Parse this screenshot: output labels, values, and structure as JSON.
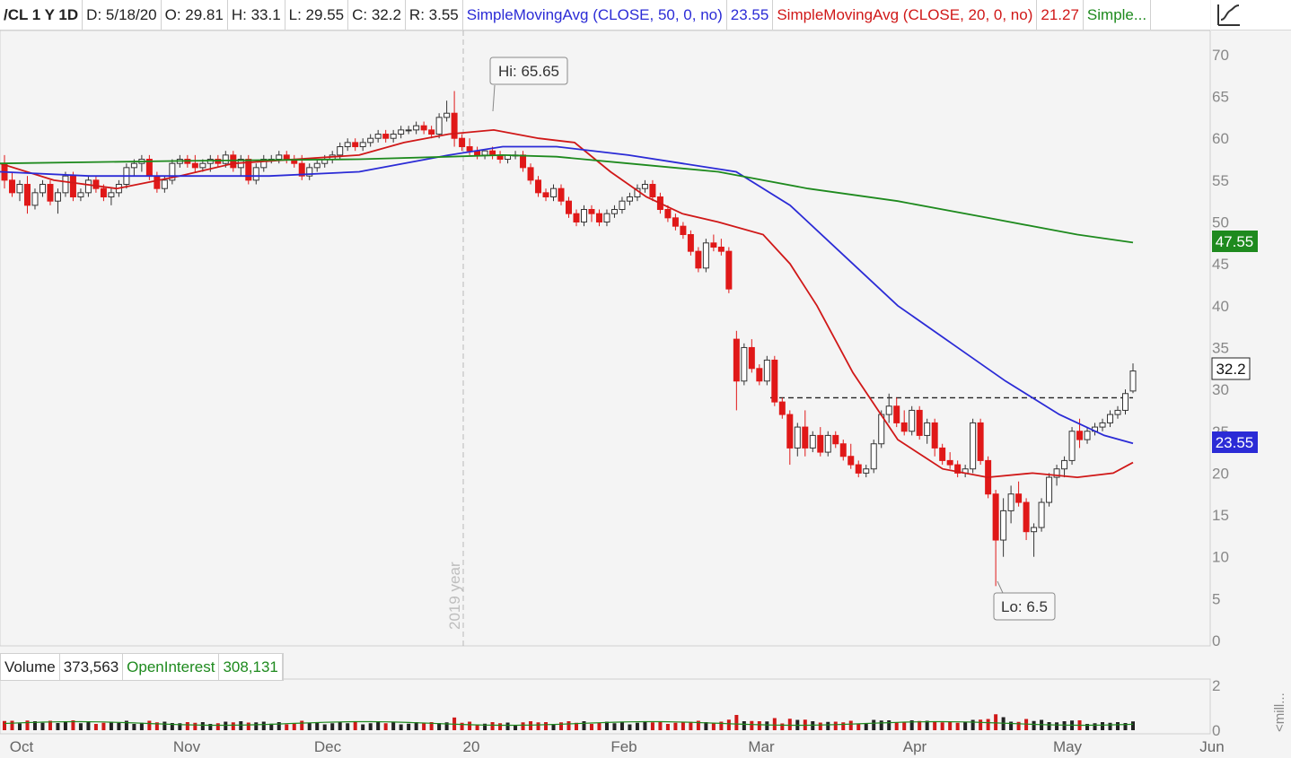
{
  "header": {
    "symbol": "/CL 1 Y 1D",
    "date": "D: 5/18/20",
    "open": "O: 29.81",
    "high": "H: 33.1",
    "low": "L: 29.55",
    "close": "C: 32.2",
    "range": "R: 3.55",
    "sma50_label": "SimpleMovingAvg (CLOSE, 50, 0, no)",
    "sma50_value": "23.55",
    "sma20_label": "SimpleMovingAvg (CLOSE, 20, 0, no)",
    "sma20_value": "21.27",
    "sma200_label": "Simple...",
    "chart_icon": "line-chart-icon"
  },
  "volume_header": {
    "volume_label": "Volume",
    "volume_value": "373,563",
    "oi_label": "OpenInterest",
    "oi_value": "308,131"
  },
  "price_axis": {
    "ticks": [
      "0",
      "5",
      "10",
      "15",
      "20",
      "25",
      "30",
      "35",
      "40",
      "45",
      "50",
      "55",
      "60",
      "65",
      "70"
    ]
  },
  "volume_axis": {
    "ticks": [
      "0",
      "2"
    ],
    "unit": "<mill..."
  },
  "year_label": "2019 year",
  "annotations": {
    "high": "Hi: 65.65",
    "low": "Lo: 6.5"
  },
  "badges": {
    "sma200": "47.55",
    "last": "32.2",
    "sma50": "23.55"
  },
  "colors": {
    "up": "#ffffff",
    "down": "#e01818",
    "sma20": "#d01818",
    "sma50": "#2b2bd6",
    "sma200": "#1e8a1e",
    "volume_up": "#222222",
    "volume_down": "#d01818",
    "open_interest": "#1e8a1e"
  },
  "chart_data": {
    "type": "candlestick",
    "x_labels": [
      "Oct",
      "Nov",
      "Dec",
      "20",
      "Feb",
      "Mar",
      "Apr",
      "May",
      "Jun"
    ],
    "ylim": [
      0,
      72
    ],
    "resistance_level": 29,
    "series": [
      {
        "name": "SimpleMovingAvg (CLOSE, 20, 0, no)",
        "points": [
          [
            0,
            57
          ],
          [
            60,
            55
          ],
          [
            130,
            54
          ],
          [
            200,
            55.5
          ],
          [
            260,
            57
          ],
          [
            330,
            57.5
          ],
          [
            400,
            58
          ],
          [
            450,
            59.5
          ],
          [
            500,
            60.5
          ],
          [
            550,
            61
          ],
          [
            600,
            60
          ],
          [
            640,
            59.5
          ],
          [
            680,
            56
          ],
          [
            720,
            53
          ],
          [
            760,
            51
          ],
          [
            800,
            50
          ],
          [
            850,
            48.5
          ],
          [
            880,
            45
          ],
          [
            910,
            40
          ],
          [
            950,
            32
          ],
          [
            1000,
            24
          ],
          [
            1050,
            20.5
          ],
          [
            1100,
            19.5
          ],
          [
            1150,
            20
          ],
          [
            1200,
            19.5
          ],
          [
            1240,
            20
          ],
          [
            1262,
            21.27
          ]
        ]
      },
      {
        "name": "SimpleMovingAvg (CLOSE, 50, 0, no)",
        "points": [
          [
            0,
            56
          ],
          [
            100,
            55.5
          ],
          [
            200,
            55.5
          ],
          [
            300,
            55.5
          ],
          [
            400,
            56
          ],
          [
            500,
            58
          ],
          [
            560,
            59
          ],
          [
            620,
            59
          ],
          [
            700,
            58
          ],
          [
            760,
            57
          ],
          [
            820,
            56
          ],
          [
            880,
            52
          ],
          [
            940,
            46
          ],
          [
            1000,
            40
          ],
          [
            1060,
            35.5
          ],
          [
            1120,
            31
          ],
          [
            1180,
            27
          ],
          [
            1230,
            24.5
          ],
          [
            1262,
            23.55
          ]
        ]
      },
      {
        "name": "Simple...",
        "points": [
          [
            0,
            57
          ],
          [
            200,
            57.3
          ],
          [
            400,
            57.5
          ],
          [
            500,
            57.8
          ],
          [
            560,
            58
          ],
          [
            620,
            57.8
          ],
          [
            700,
            57
          ],
          [
            800,
            56
          ],
          [
            900,
            54
          ],
          [
            1000,
            52.5
          ],
          [
            1100,
            50.5
          ],
          [
            1200,
            48.5
          ],
          [
            1262,
            47.55
          ]
        ]
      }
    ],
    "candles_ohlc": [
      [
        57,
        58,
        54,
        55
      ],
      [
        55,
        56,
        53,
        53.5
      ],
      [
        53.5,
        55,
        52.5,
        54.5
      ],
      [
        54.5,
        55.5,
        51,
        52
      ],
      [
        52,
        54,
        51.5,
        53.5
      ],
      [
        53.5,
        55,
        53,
        54.5
      ],
      [
        54.5,
        55,
        52,
        52.5
      ],
      [
        52.5,
        54,
        51,
        53.5
      ],
      [
        53.5,
        56,
        53,
        55.5
      ],
      [
        55.5,
        56,
        52.5,
        53
      ],
      [
        53,
        54,
        52.5,
        53.5
      ],
      [
        53.5,
        55.5,
        53,
        55
      ],
      [
        55,
        55.5,
        53.5,
        54
      ],
      [
        54,
        54.5,
        52.5,
        53
      ],
      [
        53,
        54,
        52,
        53.5
      ],
      [
        53.5,
        55,
        53,
        54.5
      ],
      [
        54.5,
        57,
        54,
        56.5
      ],
      [
        56.5,
        57.5,
        55.5,
        57
      ],
      [
        57,
        58,
        56,
        57.5
      ],
      [
        57.5,
        58,
        55,
        55.5
      ],
      [
        55.5,
        56,
        53.5,
        54
      ],
      [
        54,
        55.5,
        53.5,
        55
      ],
      [
        55,
        57.5,
        54.5,
        57
      ],
      [
        57,
        58,
        56.5,
        57.5
      ],
      [
        57.5,
        58,
        56.5,
        57
      ],
      [
        57,
        58,
        56,
        56.5
      ],
      [
        56.5,
        57.5,
        56,
        57
      ],
      [
        57,
        58,
        56,
        57.5
      ],
      [
        57.5,
        58,
        56.5,
        57
      ],
      [
        57,
        58.5,
        56.5,
        58
      ],
      [
        58,
        58.5,
        56,
        56.5
      ],
      [
        56.5,
        58,
        55.5,
        57.5
      ],
      [
        57.5,
        58,
        54.5,
        55
      ],
      [
        55,
        57,
        54.5,
        56.5
      ],
      [
        56.5,
        58,
        56,
        57.5
      ],
      [
        57.5,
        58,
        57,
        57.5
      ],
      [
        57.5,
        58.5,
        57,
        58
      ],
      [
        58,
        58.5,
        57,
        57.5
      ],
      [
        57.5,
        58,
        56.5,
        57
      ],
      [
        57,
        58,
        55,
        55.5
      ],
      [
        55.5,
        57,
        55,
        56.5
      ],
      [
        56.5,
        57.5,
        56,
        57
      ],
      [
        57,
        58,
        56.5,
        57.5
      ],
      [
        57.5,
        58.5,
        57,
        58
      ],
      [
        58,
        59.5,
        57.5,
        59
      ],
      [
        59,
        60,
        58.5,
        59.5
      ],
      [
        59.5,
        60,
        58.5,
        59
      ],
      [
        59,
        60,
        58.5,
        59.5
      ],
      [
        59.5,
        60.5,
        59,
        60
      ],
      [
        60,
        61,
        59.5,
        60.5
      ],
      [
        60.5,
        61,
        59.5,
        60
      ],
      [
        60,
        61,
        59.5,
        60.5
      ],
      [
        60.5,
        61.5,
        60,
        61
      ],
      [
        61,
        61.5,
        60.5,
        61
      ],
      [
        61,
        62,
        60.5,
        61.5
      ],
      [
        61.5,
        62,
        60.5,
        61
      ],
      [
        61,
        61.5,
        60,
        60.5
      ],
      [
        60.5,
        63,
        60,
        62.5
      ],
      [
        62.5,
        64.5,
        62,
        63
      ],
      [
        63,
        65.65,
        59,
        60
      ],
      [
        60,
        60.5,
        58.5,
        59
      ],
      [
        59,
        60,
        58,
        58.5
      ],
      [
        58.5,
        59,
        57.5,
        58
      ],
      [
        58,
        58.5,
        57.5,
        58.5
      ],
      [
        58.5,
        59,
        57.5,
        58
      ],
      [
        58,
        58.5,
        57,
        57.5
      ],
      [
        57.5,
        58,
        57,
        58
      ],
      [
        58,
        58.5,
        57.5,
        58
      ],
      [
        58,
        58.5,
        56,
        56.5
      ],
      [
        56.5,
        57,
        54.5,
        55
      ],
      [
        55,
        55.5,
        53,
        53.5
      ],
      [
        53.5,
        54,
        52.5,
        53
      ],
      [
        53,
        54.5,
        52.5,
        54
      ],
      [
        54,
        54.5,
        52,
        52.5
      ],
      [
        52.5,
        53,
        50.5,
        51
      ],
      [
        51,
        51.5,
        49.5,
        50
      ],
      [
        50,
        52,
        49.5,
        51.5
      ],
      [
        51.5,
        52,
        50,
        51
      ],
      [
        51,
        51.5,
        49.5,
        50
      ],
      [
        50,
        51.5,
        49.5,
        51
      ],
      [
        51,
        52,
        50.5,
        51.5
      ],
      [
        51.5,
        53,
        51,
        52.5
      ],
      [
        52.5,
        53.5,
        52,
        53
      ],
      [
        53,
        54.5,
        52.5,
        54
      ],
      [
        54,
        55,
        53.5,
        54.5
      ],
      [
        54.5,
        55,
        52.5,
        53
      ],
      [
        53,
        53.5,
        51,
        51.5
      ],
      [
        51.5,
        52,
        50,
        50.5
      ],
      [
        50.5,
        51,
        49,
        49.5
      ],
      [
        49.5,
        50,
        48,
        48.5
      ],
      [
        48.5,
        49,
        46,
        46.5
      ],
      [
        46.5,
        47,
        44,
        44.5
      ],
      [
        44.5,
        48,
        44,
        47.5
      ],
      [
        47.5,
        48.5,
        46.5,
        47
      ],
      [
        47,
        48,
        46,
        46.5
      ],
      [
        46.5,
        47,
        41.5,
        42
      ],
      [
        36,
        37,
        27.5,
        31
      ],
      [
        31,
        35.5,
        30.5,
        35
      ],
      [
        35,
        36,
        32,
        32.5
      ],
      [
        32.5,
        33,
        30.5,
        31
      ],
      [
        31,
        34,
        30.5,
        33.5
      ],
      [
        33.5,
        34,
        28,
        28.5
      ],
      [
        28.5,
        29,
        26.5,
        27
      ],
      [
        27,
        27.5,
        21,
        23
      ],
      [
        23,
        26,
        22,
        25.5
      ],
      [
        25.5,
        27.5,
        22,
        23
      ],
      [
        23,
        25,
        22.5,
        24.5
      ],
      [
        24.5,
        25.5,
        22,
        22.5
      ],
      [
        22.5,
        25,
        22,
        24.5
      ],
      [
        24.5,
        25,
        23,
        23.5
      ],
      [
        23.5,
        24,
        21.5,
        22
      ],
      [
        22,
        23.5,
        20.5,
        21
      ],
      [
        21,
        21.5,
        19.5,
        20
      ],
      [
        20,
        21,
        19.5,
        20.5
      ],
      [
        20.5,
        24,
        20,
        23.5
      ],
      [
        23.5,
        27.5,
        23,
        27
      ],
      [
        27,
        29.5,
        26,
        28
      ],
      [
        28,
        29,
        25.5,
        26
      ],
      [
        26,
        27.5,
        24.5,
        25
      ],
      [
        25,
        28,
        24.5,
        27.5
      ],
      [
        27.5,
        28,
        24,
        24.5
      ],
      [
        24.5,
        26.5,
        23.5,
        26
      ],
      [
        26,
        26.5,
        22,
        23
      ],
      [
        23,
        23.5,
        21,
        21.5
      ],
      [
        21.5,
        22.5,
        20.5,
        21
      ],
      [
        21,
        21.5,
        19.5,
        20
      ],
      [
        20,
        21,
        19.5,
        20.5
      ],
      [
        20.5,
        26.5,
        20,
        26
      ],
      [
        26,
        26.5,
        21,
        21.5
      ],
      [
        21.5,
        22,
        17,
        17.5
      ],
      [
        17.5,
        18,
        6.5,
        12
      ],
      [
        12,
        17,
        10,
        15.5
      ],
      [
        15.5,
        18.5,
        14,
        17.5
      ],
      [
        17.5,
        19,
        16,
        16.5
      ],
      [
        16.5,
        17,
        12,
        13
      ],
      [
        13,
        14,
        10,
        13.5
      ],
      [
        13.5,
        17,
        13,
        16.5
      ],
      [
        16.5,
        20,
        16,
        19.5
      ],
      [
        19.5,
        21,
        18.5,
        20.5
      ],
      [
        20.5,
        22,
        19.5,
        21.5
      ],
      [
        21.5,
        25.5,
        21,
        25
      ],
      [
        25,
        26.5,
        23,
        24
      ],
      [
        24,
        25.5,
        23.5,
        25
      ],
      [
        25,
        26,
        24.5,
        25.5
      ],
      [
        25.5,
        26.5,
        25,
        26
      ],
      [
        26,
        27.5,
        25.5,
        27
      ],
      [
        27,
        28,
        26.5,
        27.5
      ],
      [
        27.5,
        30,
        27,
        29.5
      ],
      [
        29.81,
        33.1,
        29.55,
        32.2
      ]
    ],
    "volume": [
      0.25,
      0.3,
      0.2,
      0.25,
      0.3,
      0.25,
      0.3,
      0.2,
      0.25,
      0.3
    ]
  }
}
